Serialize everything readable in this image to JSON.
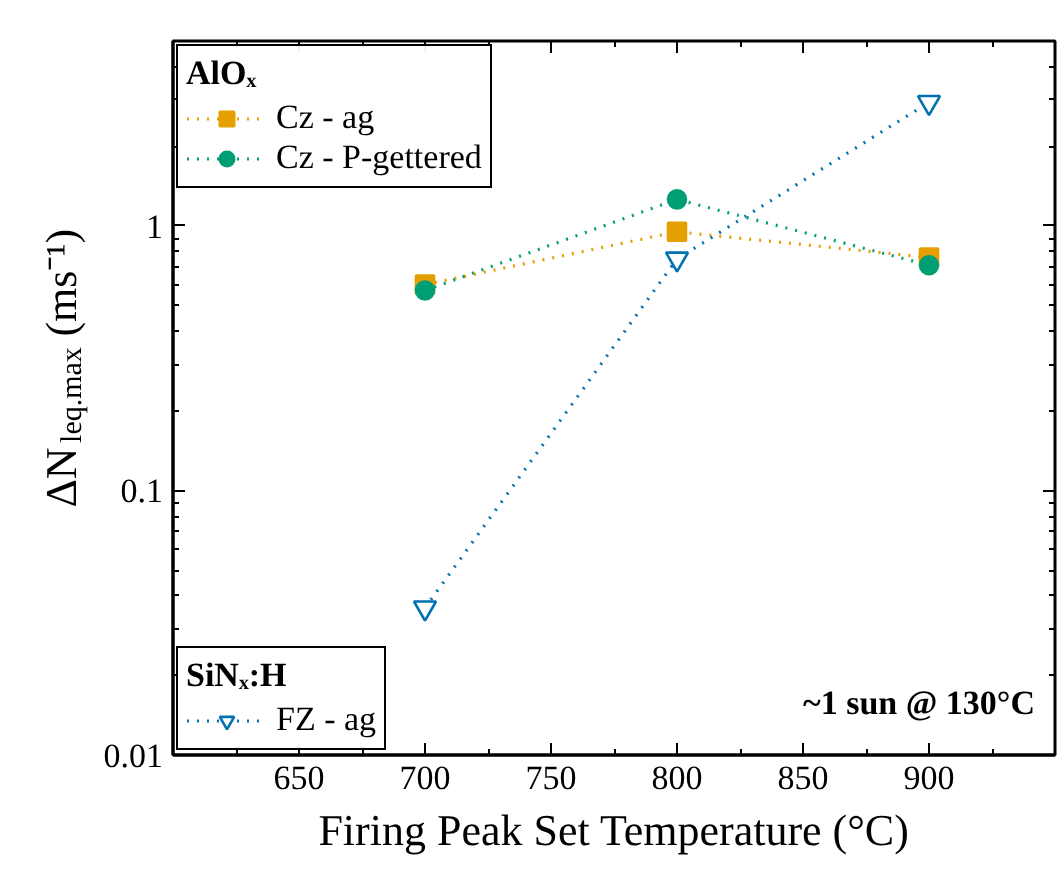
{
  "chart_data": {
    "type": "line",
    "xlabel": "Firing Peak Set Temperature (°C)",
    "ylabel": "ΔN$_{leq.max}$ (ms⁻¹)",
    "x": [
      700,
      800,
      900
    ],
    "xlim": [
      600,
      950
    ],
    "xticks": [
      650,
      700,
      750,
      800,
      850,
      900
    ],
    "ylim": [
      0.01,
      5
    ],
    "yticks": [
      0.01,
      0.1,
      1
    ],
    "log": "y",
    "grid": false,
    "line_style": "dotted",
    "legend": [
      "top left",
      "top left",
      "bottom left"
    ],
    "legend_title": [
      "AlOₓ",
      "SiNₓ:H"
    ],
    "series": [
      {
        "name": "Cz - ag",
        "color": "#e69f00",
        "marker": "square",
        "values": [
          0.6,
          0.95,
          0.76
        ]
      },
      {
        "name": "Cz - P-gettered",
        "color": "#009e73",
        "marker": "circle",
        "values": [
          0.57,
          1.26,
          0.71
        ]
      },
      {
        "name": "FZ - ag",
        "color": "#0072b2",
        "marker": "triangle",
        "values": [
          0.036,
          0.75,
          2.93
        ]
      }
    ],
    "annotations": [
      "~1 sun @ 130°C"
    ]
  }
}
